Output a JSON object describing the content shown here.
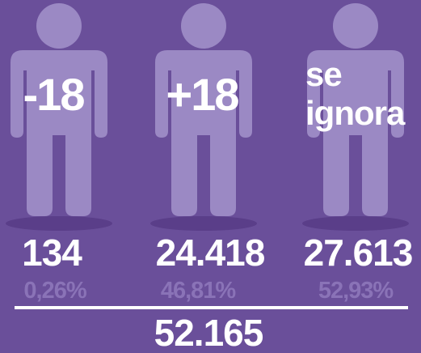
{
  "groups": [
    {
      "label": "-18",
      "count": "134",
      "percent": "0,26%"
    },
    {
      "label": "+18",
      "count": "24.418",
      "percent": "46,81%"
    },
    {
      "label_lines": [
        "se",
        "ignora"
      ],
      "count": "27.613",
      "percent": "52,93%"
    }
  ],
  "total": "52.165"
}
